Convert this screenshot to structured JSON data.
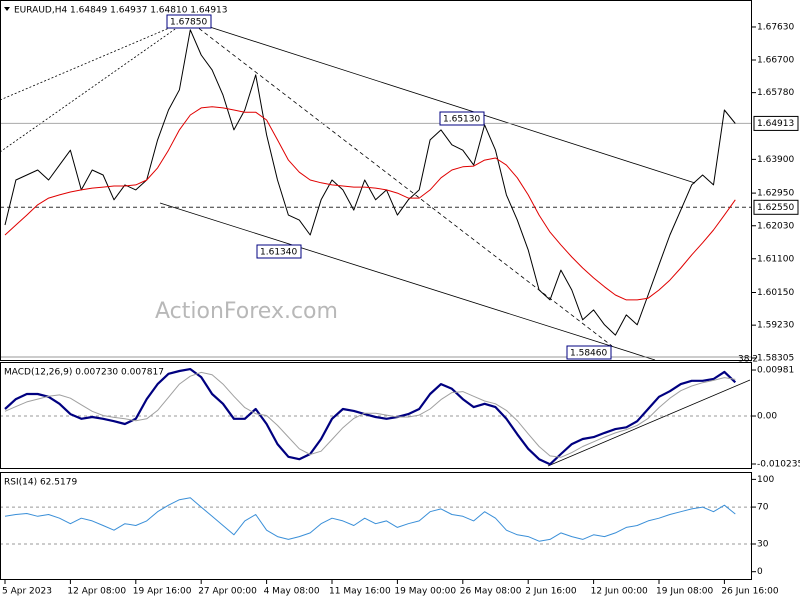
{
  "chart_data": [
    {
      "type": "line",
      "title": "EURAUD,H4  1.64849 1.64937 1.64810 1.64913",
      "watermark": "ActionForex.com",
      "annotations": [
        "1.67850",
        "1.65130",
        "1.61340",
        "1.58460",
        "38.2"
      ],
      "categories": [
        "5 Apr 2023",
        null,
        null,
        null,
        null,
        null,
        "12 Apr 08:00",
        null,
        null,
        null,
        null,
        null,
        "19 Apr 16:00",
        null,
        null,
        null,
        null,
        null,
        "27 Apr 00:00",
        null,
        null,
        null,
        null,
        null,
        "4 May 08:00",
        null,
        null,
        null,
        null,
        null,
        "11 May 16:00",
        null,
        null,
        null,
        null,
        null,
        "19 May 00:00",
        null,
        null,
        null,
        null,
        null,
        "26 May 08:00",
        null,
        null,
        null,
        null,
        null,
        "2 Jun 16:00",
        null,
        null,
        null,
        null,
        null,
        "12 Jun 00:00",
        null,
        null,
        null,
        null,
        null,
        "19 Jun 08:00",
        null,
        null,
        null,
        null,
        null,
        "26 Jun 16:00",
        null
      ],
      "ylim": [
        1.5822,
        1.6839
      ],
      "yticks": [
        {
          "value": 1.6763,
          "label": "1.67630"
        },
        {
          "value": 1.667,
          "label": "1.66700"
        },
        {
          "value": 1.6578,
          "label": "1.65780"
        },
        {
          "value": 1.639,
          "label": "1.63900"
        },
        {
          "value": 1.6295,
          "label": "1.62950"
        },
        {
          "value": 1.6203,
          "label": "1.62030"
        },
        {
          "value": 1.611,
          "label": "1.61100"
        },
        {
          "value": 1.6015,
          "label": "1.60150"
        },
        {
          "value": 1.5923,
          "label": "1.59230"
        },
        {
          "value": 1.58305,
          "label": "1.58305"
        }
      ],
      "hlines": [
        {
          "value": 1.64913,
          "label": "1.64913",
          "style": "solid"
        },
        {
          "value": 1.6255,
          "label": "1.62550",
          "style": "dashed"
        }
      ],
      "series": [
        {
          "color": "#000000",
          "width": 1,
          "values": [
            1.6205,
            1.6332,
            1.6346,
            1.636,
            1.6332,
            1.6374,
            1.6416,
            1.6304,
            1.636,
            1.6346,
            1.6276,
            1.6318,
            1.6304,
            1.6332,
            1.6445,
            1.6529,
            1.6586,
            1.6755,
            1.6684,
            1.6642,
            1.6571,
            1.6473,
            1.6529,
            1.6628,
            1.6459,
            1.6332,
            1.6233,
            1.6219,
            1.6177,
            1.6276,
            1.6332,
            1.6304,
            1.6247,
            1.6332,
            1.6276,
            1.6304,
            1.6233,
            1.6276,
            1.6304,
            1.6445,
            1.6473,
            1.6431,
            1.6416,
            1.6374,
            1.6487,
            1.6416,
            1.629,
            1.6219,
            1.6135,
            1.6022,
            1.5994,
            1.6078,
            1.6022,
            1.5938,
            1.5966,
            1.5924,
            1.5895,
            1.5952,
            1.5924,
            1.6008,
            1.6093,
            1.6177,
            1.6247,
            1.6318,
            1.6346,
            1.6318,
            1.6529,
            1.6491
          ]
        },
        {
          "color": "#e00000",
          "width": 1,
          "values": [
            1.6177,
            1.6205,
            1.6233,
            1.6262,
            1.6281,
            1.629,
            1.6298,
            1.6304,
            1.6309,
            1.6312,
            1.6315,
            1.6315,
            1.6318,
            1.6332,
            1.6366,
            1.6416,
            1.6473,
            1.6515,
            1.6535,
            1.6538,
            1.6535,
            1.6529,
            1.6523,
            1.6523,
            1.6501,
            1.6445,
            1.6388,
            1.6354,
            1.6332,
            1.6324,
            1.6318,
            1.6315,
            1.6312,
            1.6312,
            1.6309,
            1.6304,
            1.6295,
            1.6281,
            1.6281,
            1.6304,
            1.6338,
            1.636,
            1.6369,
            1.6371,
            1.6388,
            1.6394,
            1.6374,
            1.6338,
            1.629,
            1.6233,
            1.6185,
            1.6149,
            1.6115,
            1.6084,
            1.6056,
            1.6031,
            1.6008,
            1.5994,
            1.5994,
            1.5999,
            1.6022,
            1.605,
            1.6084,
            1.6121,
            1.6155,
            1.6191,
            1.6233,
            1.6276
          ]
        }
      ]
    },
    {
      "type": "line",
      "title": "MACD(12,26,9) 0.007230 0.007817",
      "ylim": [
        -0.0113,
        0.01152
      ],
      "yticks": [
        0.00981,
        {
          "value": 0,
          "label": "0.00"
        },
        -0.010235
      ],
      "dashed_levels": [
        0
      ],
      "series": [
        {
          "color": "#000080",
          "width": 2.2,
          "values": [
            0.0015,
            0.0036,
            0.0047,
            0.0047,
            0.0041,
            0.0026,
            0.0004,
            -0.0006,
            -0.0002,
            -0.0006,
            -0.0011,
            -0.0017,
            -0.0006,
            0.0036,
            0.0068,
            0.009,
            0.0096,
            0.01,
            0.0083,
            0.0047,
            0.0026,
            -0.0006,
            -0.0006,
            0.0015,
            -0.0017,
            -0.006,
            -0.0087,
            -0.0092,
            -0.0081,
            -0.0049,
            -0.0006,
            0.0015,
            0.0011,
            0.0004,
            -0.0002,
            -0.0006,
            -0.0002,
            0.0004,
            0.0015,
            0.0047,
            0.0068,
            0.0058,
            0.0036,
            0.0019,
            0.0026,
            0.0019,
            -0.0006,
            -0.0039,
            -0.007,
            -0.0092,
            -0.0103,
            -0.0081,
            -0.006,
            -0.0049,
            -0.0045,
            -0.0036,
            -0.0028,
            -0.0024,
            -0.0011,
            0.0015,
            0.0041,
            0.0053,
            0.0068,
            0.0075,
            0.0075,
            0.0079,
            0.0094,
            0.0072
          ]
        },
        {
          "color": "#a0a0a0",
          "width": 1,
          "values": [
            0.001,
            0.002,
            0.003,
            0.0036,
            0.0042,
            0.0045,
            0.0038,
            0.0024,
            0.001,
            0.0001,
            -0.0003,
            -0.0006,
            -0.001,
            -0.0006,
            0.0012,
            0.004,
            0.0068,
            0.0085,
            0.0093,
            0.0088,
            0.0068,
            0.0042,
            0.0018,
            0.0005,
            0.0001,
            -0.002,
            -0.0045,
            -0.007,
            -0.0082,
            -0.0075,
            -0.005,
            -0.0025,
            -0.0005,
            0.0006,
            0.0006,
            0.0002,
            -0.0002,
            -0.0002,
            0.0002,
            0.0015,
            0.0035,
            0.005,
            0.0052,
            0.0042,
            0.0032,
            0.0026,
            0.0012,
            -0.001,
            -0.0038,
            -0.0065,
            -0.0085,
            -0.0088,
            -0.0078,
            -0.0065,
            -0.0055,
            -0.0045,
            -0.0036,
            -0.0029,
            -0.002,
            -0.0005,
            0.0018,
            0.0038,
            0.0054,
            0.0064,
            0.0071,
            0.0076,
            0.0082,
            0.0078
          ]
        }
      ]
    },
    {
      "type": "line",
      "title": "RSI(14) 62.5179",
      "ylim": [
        -9,
        108
      ],
      "yticks": [
        100,
        70,
        30,
        0
      ],
      "dashed_levels": [
        70,
        30
      ],
      "series": [
        {
          "color": "#3a8fd8",
          "width": 1,
          "values": [
            60,
            62,
            63,
            60,
            62,
            58,
            52,
            58,
            55,
            50,
            45,
            52,
            50,
            55,
            65,
            72,
            78,
            80,
            70,
            60,
            50,
            40,
            55,
            62,
            45,
            38,
            35,
            38,
            42,
            52,
            58,
            55,
            50,
            58,
            52,
            55,
            48,
            52,
            55,
            65,
            68,
            62,
            60,
            55,
            65,
            58,
            45,
            40,
            38,
            33,
            35,
            42,
            38,
            35,
            40,
            38,
            42,
            48,
            50,
            55,
            58,
            62,
            65,
            68,
            70,
            65,
            72,
            62.5179
          ]
        }
      ]
    }
  ]
}
